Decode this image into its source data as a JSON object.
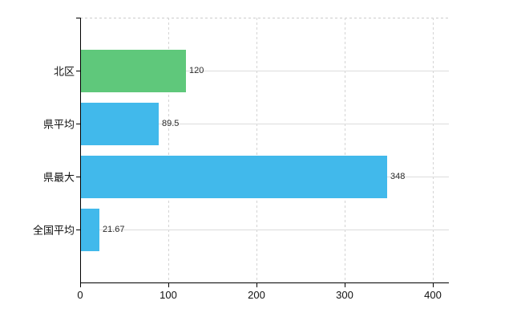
{
  "chart": {
    "background": "#ffffff",
    "axis_color": "#000000",
    "gridline_color": "#dcdcdc",
    "dashed_line_color": "#cccccc",
    "text_color": "#111111",
    "value_text_color": "#2b2b2b"
  },
  "chart_data": {
    "type": "bar",
    "orientation": "horizontal",
    "title": "",
    "xlabel": "",
    "ylabel": "",
    "legend": "none",
    "grid": true,
    "categories": [
      "北区",
      "県平均",
      "県最大",
      "全国平均"
    ],
    "values": [
      120,
      89.5,
      348,
      21.67
    ],
    "value_labels": [
      "120",
      "89.5",
      "348",
      "21.67"
    ],
    "bar_colors": [
      "#5fc87b",
      "#41b9eb",
      "#41b9eb",
      "#41b9eb"
    ],
    "x_ticks": [
      0,
      100,
      200,
      300,
      400
    ],
    "x_tick_labels": [
      "0",
      "100",
      "200",
      "300",
      "400"
    ],
    "xlim": [
      0,
      418
    ]
  }
}
